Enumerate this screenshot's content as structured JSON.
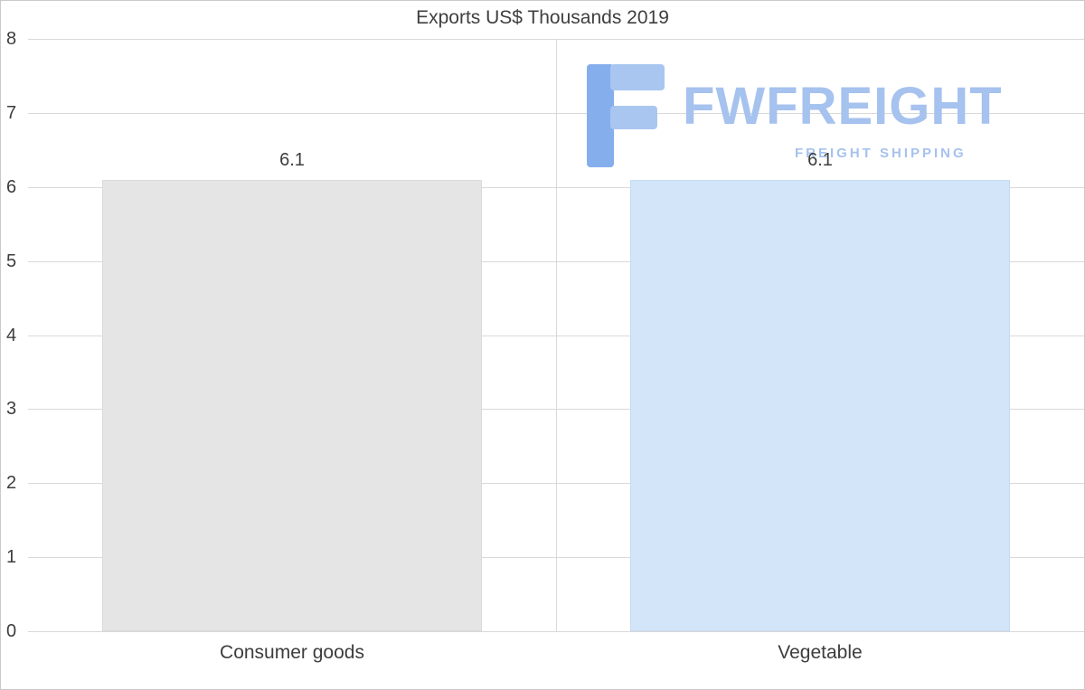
{
  "watermark": {
    "brand": "FWFREIGHT",
    "tagline": "FREIGHT SHIPPING",
    "color": "#a6c2ee",
    "logo_dark": "#85aeec",
    "logo_light": "#a9c6f1"
  },
  "chart_data": {
    "type": "bar",
    "title": "Exports US$ Thousands 2019",
    "categories": [
      "Consumer goods",
      "Vegetable"
    ],
    "values": [
      6.1,
      6.1
    ],
    "value_labels": [
      "6.1",
      "6.1"
    ],
    "bar_colors": [
      "#e5e5e5",
      "#d3e5f8"
    ],
    "bar_border_colors": [
      "#dadada",
      "#c4daf2"
    ],
    "xlabel": "",
    "ylabel": "",
    "ylim": [
      0,
      8
    ],
    "yticks": [
      0,
      1,
      2,
      3,
      4,
      5,
      6,
      7,
      8
    ],
    "grid": true,
    "legend": "none",
    "text_color": "#3d3d3d",
    "grid_color": "#d9d9d9",
    "background": "#ffffff"
  }
}
